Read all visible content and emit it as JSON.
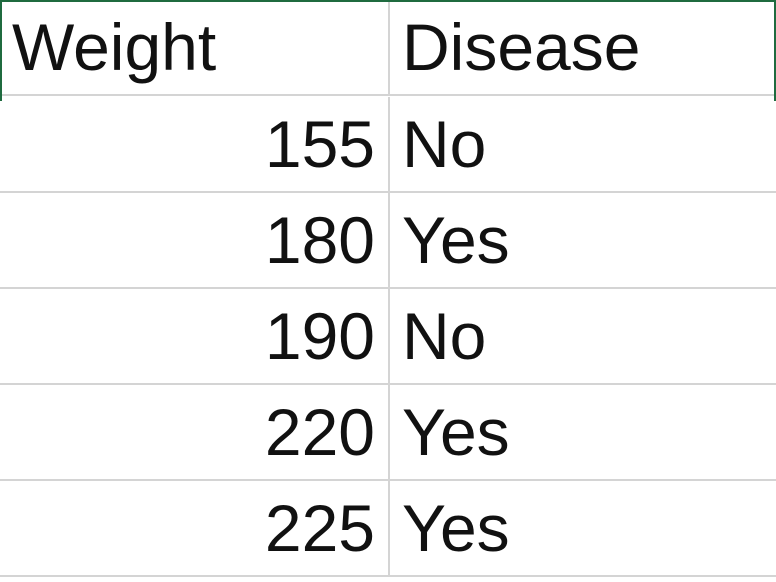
{
  "sheet": {
    "headers": [
      "Weight",
      "Disease"
    ],
    "rows": [
      {
        "weight": "155",
        "disease": "No"
      },
      {
        "weight": "180",
        "disease": "Yes"
      },
      {
        "weight": "190",
        "disease": "No"
      },
      {
        "weight": "220",
        "disease": "Yes"
      },
      {
        "weight": "225",
        "disease": "Yes"
      }
    ],
    "colors": {
      "gridline": "#d4d4d4",
      "selection_border": "#1f6b3f",
      "text": "#111111"
    }
  }
}
